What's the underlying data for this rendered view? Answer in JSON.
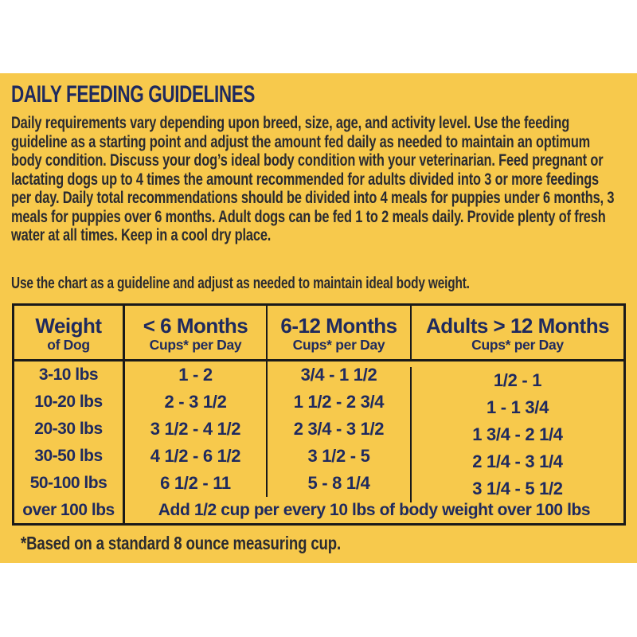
{
  "page": {
    "title": "DAILY FEEDING GUIDELINES",
    "intro": "Daily requirements vary depending upon breed, size, age, and activity level. Use the feeding guideline as a starting point and adjust the amount fed daily as needed to maintain an optimum body condition. Discuss your dog’s ideal body condition with your veterinarian. Feed pregnant or lactating dogs up to 4 times the amount recommended for adults divided into 3 or more feedings per day. Daily total recommendations should be divided into 4 meals for puppies under 6 months, 3 meals for puppies over 6 months. Adult dogs can be fed 1 to 2 meals daily. Provide plenty of fresh water at all times. Keep in a cool dry place.",
    "chart_note": "Use the chart as a guideline and adjust as needed to maintain ideal body weight.",
    "footnote": "*Based on a standard 8 ounce measuring cup."
  },
  "colors": {
    "panel_yellow": "#F7C94C",
    "navy_text": "#1F2A5E",
    "body_ink": "#2B2B30",
    "table_border": "#1A1A1A",
    "background": "#FFFFFF"
  },
  "table": {
    "columns": [
      {
        "title": "Weight",
        "subtitle": "of Dog"
      },
      {
        "title": "< 6 Months",
        "subtitle": "Cups* per Day"
      },
      {
        "title": "6-12 Months",
        "subtitle": "Cups* per Day"
      },
      {
        "title": "Adults > 12 Months",
        "subtitle": "Cups* per Day"
      }
    ],
    "rows": [
      {
        "weight": "3-10 lbs",
        "under6": "1 - 2",
        "m6to12": "3/4 - 1 1/2",
        "adult": "1/2 - 1"
      },
      {
        "weight": "10-20 lbs",
        "under6": "2 - 3 1/2",
        "m6to12": "1 1/2 - 2 3/4",
        "adult": "1 - 1 3/4"
      },
      {
        "weight": "20-30 lbs",
        "under6": "3 1/2 - 4 1/2",
        "m6to12": "2 3/4 - 3 1/2",
        "adult": "1 3/4 - 2 1/4"
      },
      {
        "weight": "30-50 lbs",
        "under6": "4 1/2 - 6 1/2",
        "m6to12": "3 1/2 - 5",
        "adult": "2 1/4 - 3 1/4"
      },
      {
        "weight": "50-100 lbs",
        "under6": "6 1/2 - 11",
        "m6to12": "5 - 8 1/4",
        "adult": "3 1/4 - 5 1/2"
      }
    ],
    "last_row": {
      "weight": "over 100 lbs",
      "note": "Add 1/2 cup per every 10 lbs of body weight over 100 lbs"
    }
  }
}
